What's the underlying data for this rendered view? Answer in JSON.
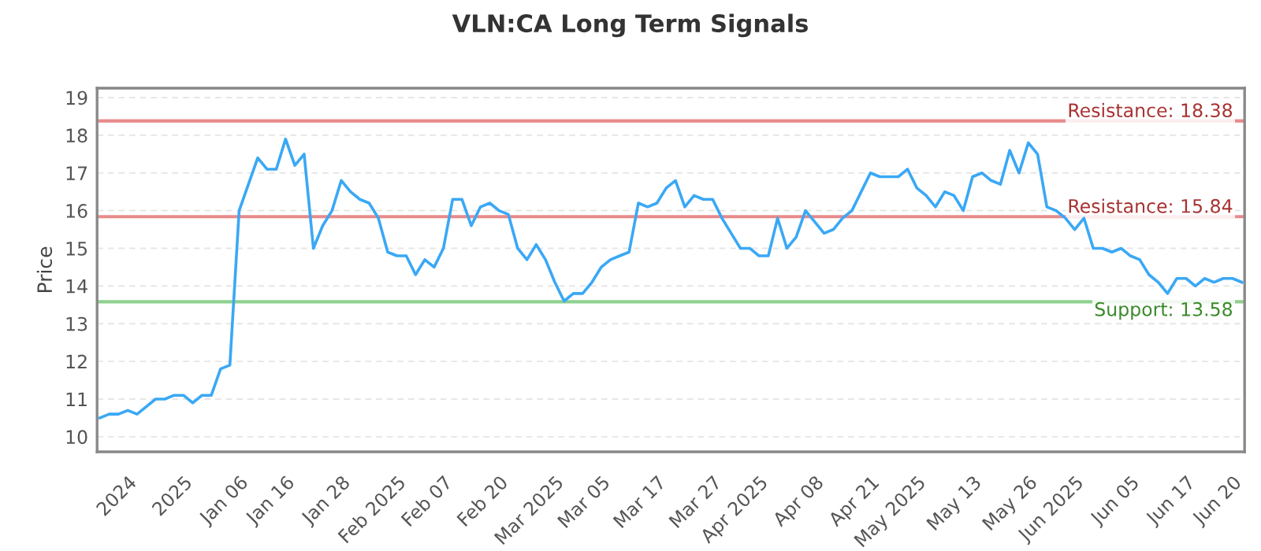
{
  "chart_data": {
    "type": "line",
    "title": "VLN:CA Long Term Signals",
    "ylabel": "Price",
    "categories": [
      null,
      null,
      null,
      "2024",
      null,
      null,
      null,
      null,
      null,
      "2025",
      null,
      null,
      null,
      null,
      null,
      "Jan 06",
      null,
      null,
      null,
      null,
      "Jan 16",
      null,
      null,
      null,
      null,
      null,
      "Jan 28",
      null,
      null,
      null,
      null,
      null,
      "Feb 2025",
      null,
      null,
      null,
      null,
      "Feb 07",
      null,
      null,
      null,
      null,
      null,
      "Feb 20",
      null,
      null,
      null,
      null,
      null,
      "Mar 2025",
      null,
      null,
      null,
      null,
      "Mar 05",
      null,
      null,
      null,
      null,
      null,
      "Mar 17",
      null,
      null,
      null,
      null,
      null,
      "Mar 27",
      null,
      null,
      null,
      null,
      "Apr 2025",
      null,
      null,
      null,
      null,
      null,
      "Apr 08",
      null,
      null,
      null,
      null,
      null,
      "Apr 21",
      null,
      null,
      null,
      null,
      "May 2025",
      null,
      null,
      null,
      null,
      null,
      "May 13",
      null,
      null,
      null,
      null,
      null,
      "May 26",
      null,
      null,
      null,
      null,
      "Jun 2025",
      null,
      null,
      null,
      null,
      null,
      "Jun 05",
      null,
      null,
      null,
      null,
      null,
      "Jun 17",
      null,
      null,
      null,
      null,
      "Jun 20",
      null
    ],
    "series": [
      {
        "color": "#3aa8f5",
        "values": [
          10.5,
          10.6,
          10.6,
          10.7,
          10.6,
          10.8,
          11.0,
          11.0,
          11.1,
          11.1,
          10.9,
          11.1,
          11.1,
          11.8,
          11.9,
          16.0,
          16.7,
          17.4,
          17.1,
          17.1,
          17.9,
          17.2,
          17.5,
          15.0,
          15.6,
          16.0,
          16.8,
          16.5,
          16.3,
          16.2,
          15.8,
          14.9,
          14.8,
          14.8,
          14.3,
          14.7,
          14.5,
          15.0,
          16.3,
          16.3,
          15.6,
          16.1,
          16.2,
          16.0,
          15.9,
          15.0,
          14.7,
          15.1,
          14.7,
          14.1,
          13.6,
          13.8,
          13.8,
          14.1,
          14.5,
          14.7,
          14.8,
          14.9,
          16.2,
          16.1,
          16.2,
          16.6,
          16.8,
          16.1,
          16.4,
          16.3,
          16.3,
          15.8,
          15.4,
          15.0,
          15.0,
          14.8,
          14.8,
          15.8,
          15.0,
          15.3,
          16.0,
          15.7,
          15.4,
          15.5,
          15.8,
          16.0,
          16.5,
          17.0,
          16.9,
          16.9,
          16.9,
          17.1,
          16.6,
          16.4,
          16.1,
          16.5,
          16.4,
          16.0,
          16.9,
          17.0,
          16.8,
          16.7,
          17.6,
          17.0,
          17.8,
          17.5,
          16.1,
          16.0,
          15.8,
          15.5,
          15.8,
          15.0,
          15.0,
          14.9,
          15.0,
          14.8,
          14.7,
          14.3,
          14.1,
          13.8,
          14.2,
          14.2,
          14.0,
          14.2,
          14.1,
          14.2,
          14.2,
          14.1
        ]
      }
    ],
    "ylim": [
      9.6,
      19.25
    ],
    "yticks": [
      10,
      11,
      12,
      13,
      14,
      15,
      16,
      17,
      18,
      19
    ],
    "grid": "y",
    "ref_lines": [
      {
        "axis": "y",
        "value": 18.38,
        "label": "Resistance: 18.38",
        "color": "#e88a8a"
      },
      {
        "axis": "y",
        "value": 15.84,
        "label": "Resistance: 15.84",
        "color": "#e88a8a"
      },
      {
        "axis": "y",
        "value": 13.58,
        "label": "Support: 13.58",
        "color": "#8fd18f"
      }
    ]
  }
}
